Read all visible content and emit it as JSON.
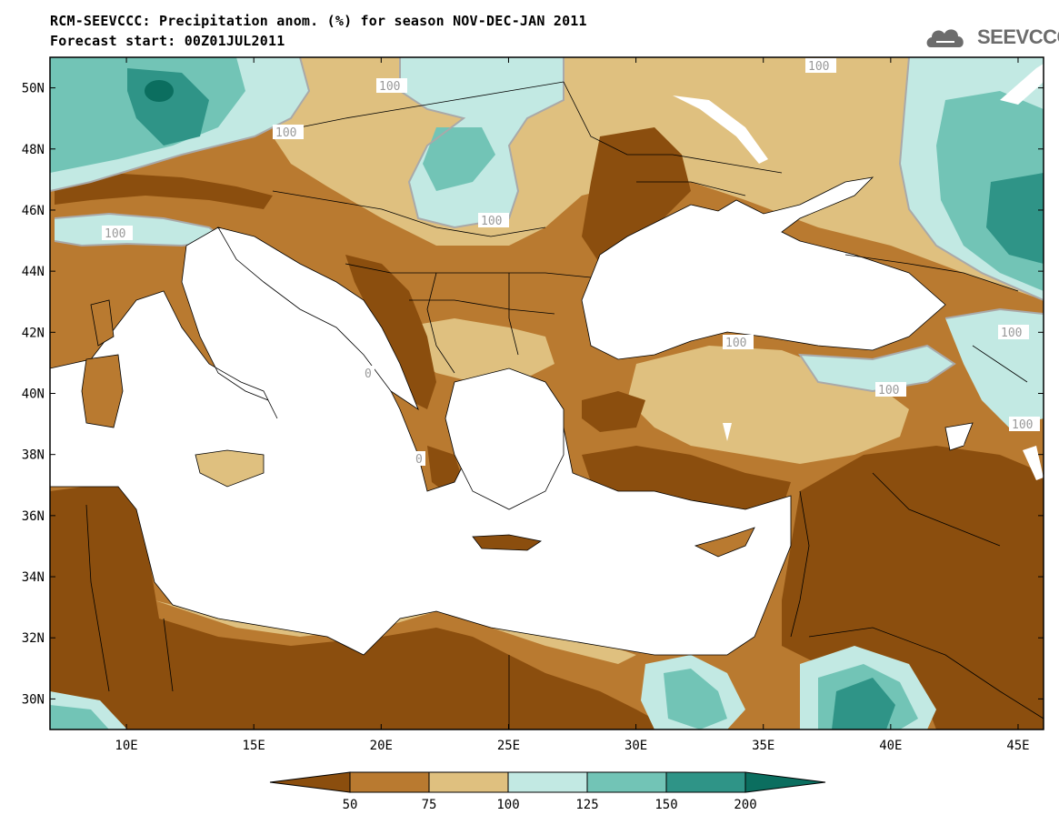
{
  "title_line1": "RCM-SEEVCCC: Precipitation anom. (%) for season NOV-DEC-JAN 2011",
  "title_line2": "Forecast start: 00Z01JUL2011",
  "logo_text": "SEEVCCC",
  "map": {
    "lon_range": [
      7,
      46
    ],
    "lat_range": [
      29,
      51
    ],
    "x_ticks": [
      "10E",
      "15E",
      "20E",
      "25E",
      "30E",
      "35E",
      "40E",
      "45E"
    ],
    "y_ticks": [
      "50N",
      "48N",
      "46N",
      "44N",
      "42N",
      "40N",
      "38N",
      "36N",
      "34N",
      "32N",
      "30N"
    ],
    "contour_labels": [
      "100",
      "100",
      "100",
      "100",
      "100",
      "100",
      "100",
      "100",
      "100",
      "0",
      "0"
    ]
  },
  "colorbar": {
    "boundaries": [
      "50",
      "75",
      "100",
      "125",
      "150",
      "200"
    ],
    "colors": [
      "#8b4e0e",
      "#b97a30",
      "#dfc07f",
      "#c2e9e3",
      "#72c4b6",
      "#2f9487",
      "#0b6e5f"
    ]
  }
}
